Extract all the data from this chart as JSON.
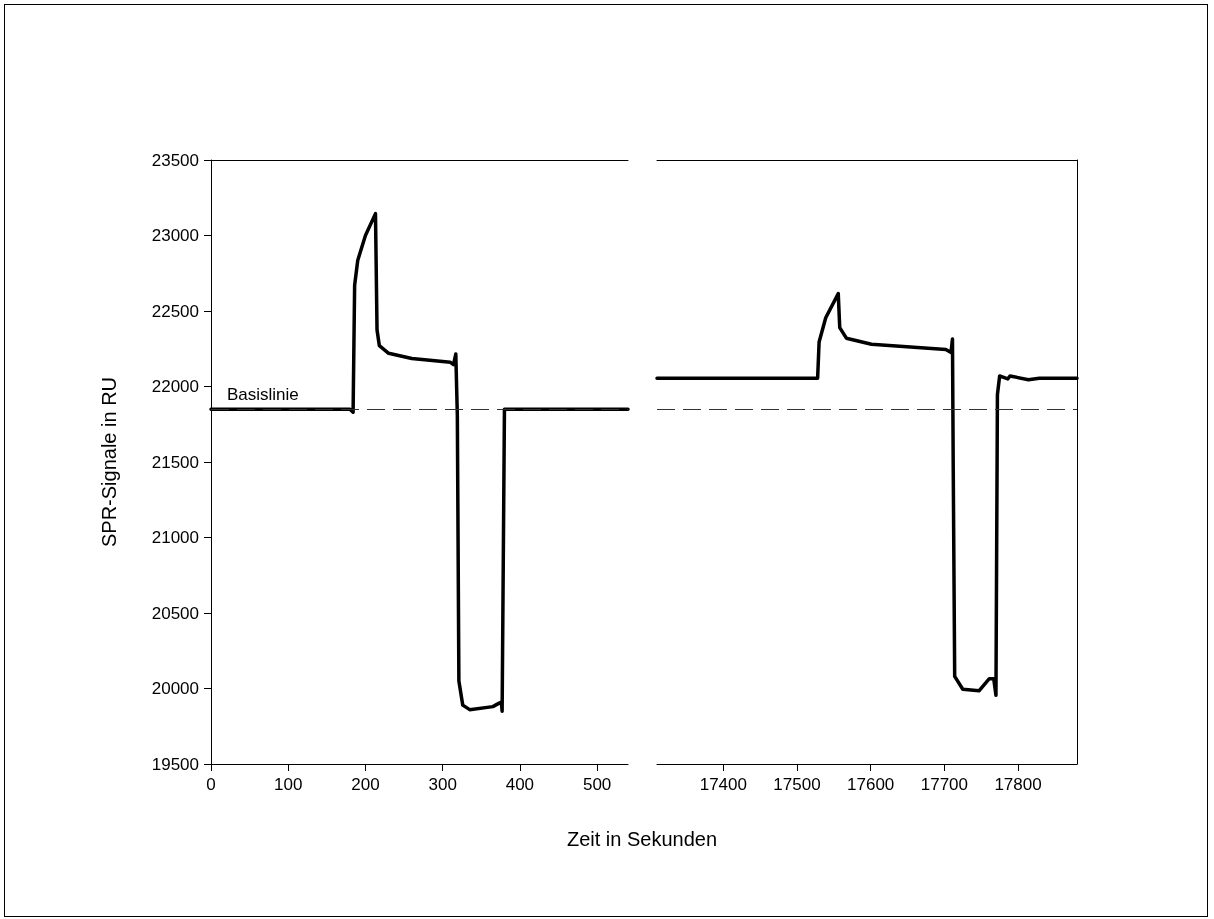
{
  "chart_data": [
    {
      "type": "line",
      "ylabel": "SPR-Signale in RU",
      "xlabel": "Zeit in Sekunden",
      "xlim": [
        0,
        540
      ],
      "xticks": [
        0,
        100,
        200,
        300,
        400,
        500
      ],
      "ylim": [
        19500,
        23500
      ],
      "yticks": [
        19500,
        20000,
        20500,
        21000,
        21500,
        22000,
        22500,
        23000,
        23500
      ],
      "grid": false,
      "marker": "none",
      "line_style": "solid",
      "series": [
        {
          "color": "#000000",
          "x": [
            0,
            180,
            184,
            186,
            190,
            200,
            213,
            215,
            218,
            230,
            260,
            310,
            314,
            317,
            319,
            321,
            326,
            335,
            365,
            372,
            376,
            377,
            380,
            540
          ],
          "values": [
            21850,
            21850,
            21830,
            22670,
            22835,
            23000,
            23145,
            22375,
            22270,
            22220,
            22185,
            22160,
            22145,
            22215,
            21810,
            20050,
            19890,
            19860,
            19880,
            19900,
            19910,
            19850,
            21850,
            21850
          ]
        }
      ],
      "ref_lines": [
        {
          "axis": "y",
          "value": 21850,
          "label": "Basislinie",
          "line_style": "dashed",
          "color": "#333333"
        }
      ]
    },
    {
      "type": "line",
      "xlim": [
        17310,
        17880
      ],
      "xticks": [
        17400,
        17500,
        17600,
        17700,
        17800
      ],
      "ylim": [
        19500,
        23500
      ],
      "yticks": [
        19500,
        20000,
        20500,
        21000,
        21500,
        22000,
        22500,
        23000,
        23500
      ],
      "tick_labels": "x",
      "grid": false,
      "marker": "none",
      "line_style": "solid",
      "series": [
        {
          "color": "#000000",
          "x": [
            17310,
            17528,
            17530,
            17539,
            17556,
            17558,
            17567,
            17601,
            17702,
            17709,
            17711,
            17712,
            17714,
            17725,
            17747,
            17761,
            17767,
            17770,
            17772,
            17775,
            17786,
            17789,
            17814,
            17829,
            17880
          ],
          "values": [
            22055,
            22055,
            22295,
            22455,
            22615,
            22390,
            22320,
            22280,
            22245,
            22225,
            22315,
            21480,
            20080,
            19995,
            19985,
            20065,
            20065,
            19955,
            21945,
            22070,
            22050,
            22070,
            22045,
            22055,
            22055
          ]
        }
      ],
      "ref_lines": [
        {
          "axis": "y",
          "value": 21850,
          "line_style": "dashed",
          "color": "#333333"
        }
      ]
    }
  ]
}
